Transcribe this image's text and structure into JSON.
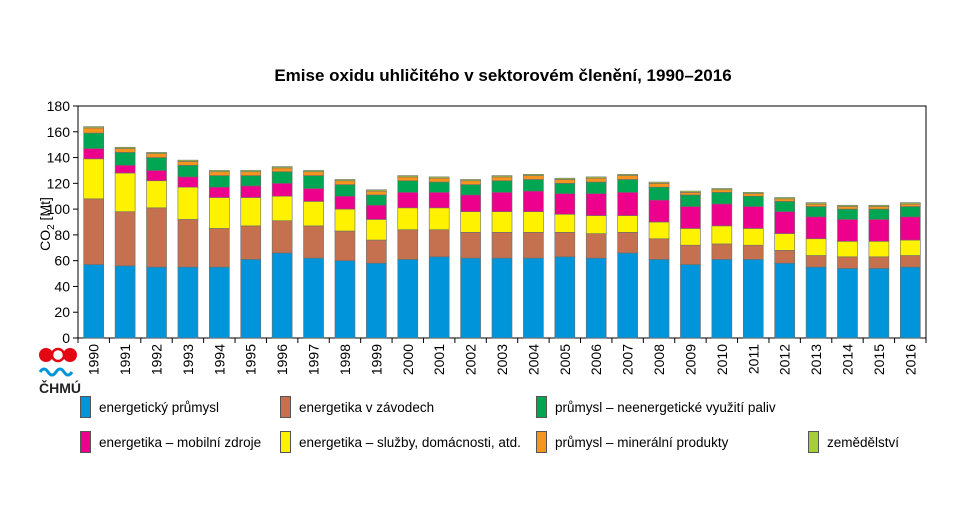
{
  "logo_text": "ČHMÚ",
  "chart_data": {
    "type": "bar",
    "stacked": true,
    "title": "Emise oxidu uhličitého v sektorovém členění, 1990–2016",
    "ylabel": "CO",
    "ylabel_sub": "2",
    "ylabel_unit": " [Mt]",
    "ylim": [
      0,
      180
    ],
    "yticks": [
      0,
      20,
      40,
      60,
      80,
      100,
      120,
      140,
      160,
      180
    ],
    "grid": false,
    "legend_position": "bottom",
    "categories": [
      "1990",
      "1991",
      "1992",
      "1993",
      "1994",
      "1995",
      "1996",
      "1997",
      "1998",
      "1999",
      "2000",
      "2001",
      "2002",
      "2003",
      "2004",
      "2005",
      "2006",
      "2007",
      "2008",
      "2009",
      "2010",
      "2011",
      "2012",
      "2013",
      "2014",
      "2015",
      "2016"
    ],
    "series": [
      {
        "name": "energetický průmysl",
        "color": "#0095da",
        "values": [
          57,
          56,
          55,
          55,
          55,
          61,
          66,
          62,
          60,
          58,
          61,
          63,
          62,
          62,
          62,
          63,
          62,
          66,
          61,
          57,
          61,
          61,
          58,
          55,
          54,
          54,
          55
        ]
      },
      {
        "name": "energetika v závodech",
        "color": "#c5714f",
        "values": [
          51,
          42,
          46,
          37,
          30,
          26,
          25,
          25,
          23,
          18,
          23,
          21,
          20,
          20,
          20,
          19,
          19,
          16,
          16,
          15,
          12,
          11,
          10,
          9,
          9,
          9,
          9
        ]
      },
      {
        "name": "energetika – služby, domácnosti, atd.",
        "color": "#fff200",
        "values": [
          31,
          30,
          21,
          25,
          24,
          22,
          19,
          19,
          17,
          16,
          17,
          17,
          16,
          16,
          16,
          14,
          14,
          13,
          13,
          13,
          14,
          13,
          13,
          13,
          12,
          12,
          12
        ]
      },
      {
        "name": "energetika – mobilní zdroje",
        "color": "#ec008c",
        "values": [
          8,
          6,
          8,
          8,
          8,
          9,
          10,
          10,
          10,
          11,
          12,
          12,
          13,
          15,
          16,
          16,
          17,
          18,
          17,
          17,
          17,
          17,
          17,
          17,
          17,
          17,
          18
        ]
      },
      {
        "name": "průmysl – neenergetické využití paliv",
        "color": "#00a651",
        "values": [
          12,
          10,
          10,
          9,
          9,
          8,
          9,
          10,
          9,
          8,
          9,
          8,
          8,
          9,
          9,
          8,
          9,
          10,
          10,
          9,
          9,
          8,
          8,
          8,
          8,
          8,
          8
        ]
      },
      {
        "name": "průmysl – minerální produkty",
        "color": "#f7941d",
        "values": [
          4,
          3,
          3,
          3,
          3,
          3,
          3,
          3,
          3,
          3,
          3,
          3,
          3,
          3,
          3,
          3,
          3,
          3,
          3,
          2,
          2,
          2,
          2,
          2,
          2,
          2,
          2
        ]
      },
      {
        "name": "zemědělství",
        "color": "#a6ce39",
        "values": [
          1,
          1,
          1,
          1,
          1,
          1,
          1,
          1,
          1,
          1,
          1,
          1,
          1,
          1,
          1,
          1,
          1,
          1,
          1,
          1,
          1,
          1,
          1,
          1,
          1,
          1,
          1
        ]
      }
    ],
    "legend_order": [
      0,
      1,
      4,
      3,
      2,
      5,
      6
    ]
  }
}
